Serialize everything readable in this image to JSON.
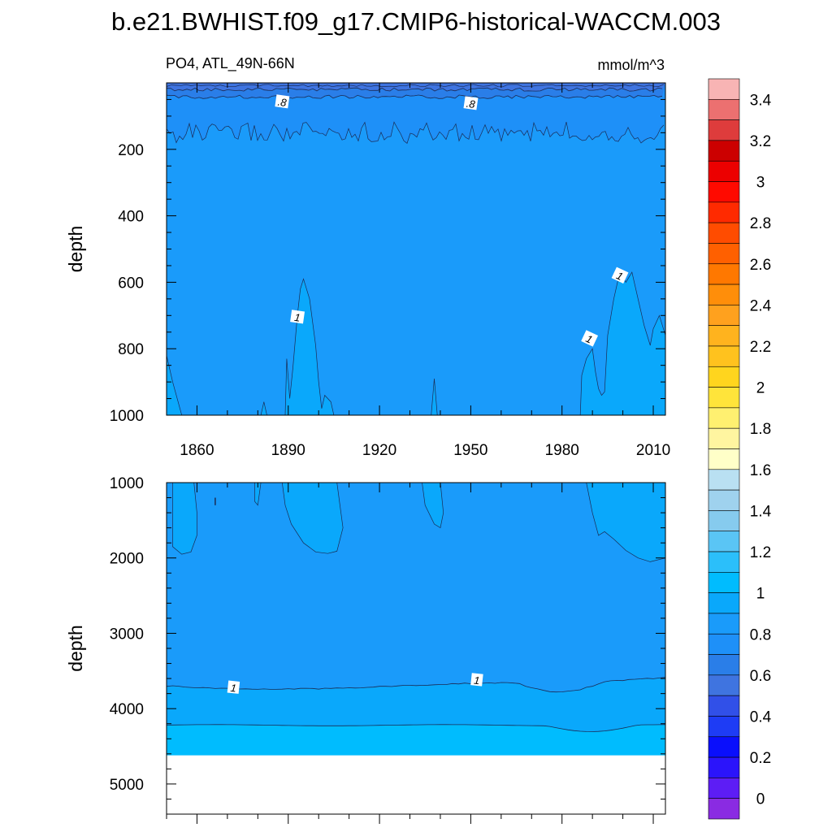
{
  "figure": {
    "title": "b.e21.BWHIST.f09_g17.CMIP6-historical-WACCM.003",
    "left_label": "PO4, ATL_49N-66N",
    "right_label": "mmol/m^3"
  },
  "chart_data": [
    {
      "type": "contour",
      "panel": "upper",
      "xlabel": "",
      "ylabel": "depth",
      "xlim": [
        1850,
        2014
      ],
      "ylim": [
        1000,
        0
      ],
      "xticks": [
        "1860",
        "1890",
        "1920",
        "1950",
        "1980",
        "2010"
      ],
      "yticks": [
        "200",
        "400",
        "600",
        "800",
        "1000"
      ],
      "fill_levels": [
        {
          "range": "0.6-0.7",
          "color": "#3f74e0",
          "approx_depth_top": 0,
          "approx_depth_bottom": 20
        },
        {
          "range": "0.7-0.8",
          "color": "#2a7ee8",
          "approx_depth_top": 20,
          "approx_depth_bottom": 40
        },
        {
          "range": "0.8-0.9",
          "color": "#1e90f8",
          "approx_depth_top": 40,
          "approx_depth_bottom": 130
        },
        {
          "range": "0.9-1.0",
          "color": "#1a9bfa",
          "approx_depth_top": 130,
          "approx_depth_bottom": 1000
        },
        {
          "range": "1.0-1.1",
          "color": "#0aa8fb",
          "note": "patches below ~590 m near 1895 and after ~1985"
        }
      ],
      "contour_labels": [
        {
          "text": ".8",
          "x": 1888,
          "depth": 57
        },
        {
          "text": ".8",
          "x": 1950,
          "depth": 62
        },
        {
          "text": "1",
          "x": 1893,
          "depth": 705
        },
        {
          "text": "1",
          "x": 1989,
          "depth": 770
        },
        {
          "text": "1",
          "x": 1999,
          "depth": 580
        }
      ]
    },
    {
      "type": "contour",
      "panel": "lower",
      "xlabel": "",
      "ylabel": "depth",
      "xlim": [
        1850,
        2014
      ],
      "ylim": [
        5400,
        1000
      ],
      "yticks": [
        "1000",
        "2000",
        "3000",
        "4000",
        "5000"
      ],
      "fill_levels": [
        {
          "range": "0.9-1.0",
          "color": "#1a9bfa",
          "approx_depth_top": 1000,
          "approx_depth_bottom": 3700
        },
        {
          "range": "1.0-1.1",
          "color": "#0aa8fb",
          "approx_depth_top": 3700,
          "approx_depth_bottom": 4230
        },
        {
          "range": "1.1-1.2",
          "color": "#00bcfe",
          "approx_depth_top": 4230,
          "approx_depth_bottom": 4620
        }
      ],
      "missing_below_depth": 4620,
      "contour_labels": [
        {
          "text": "1",
          "x": 1872,
          "depth": 3720
        },
        {
          "text": "1",
          "x": 1952,
          "depth": 3620
        }
      ]
    }
  ],
  "colorbar": {
    "labels": [
      "0",
      "0.2",
      "0.4",
      "0.6",
      "0.8",
      "1",
      "1.2",
      "1.4",
      "1.6",
      "1.8",
      "2",
      "2.2",
      "2.4",
      "2.6",
      "2.8",
      "3",
      "3.2",
      "3.4"
    ],
    "colors": [
      "#8a2be2",
      "#5d1df5",
      "#2b14fb",
      "#0a0ffc",
      "#1e3cf5",
      "#3150e8",
      "#3f74e0",
      "#2a7ee8",
      "#1e90f8",
      "#1a9bfa",
      "#0aa8fb",
      "#00bcfe",
      "#2bbffa",
      "#5ac5f5",
      "#86cbee",
      "#9fd2ee",
      "#b9e0f2",
      "#ffffc8",
      "#fff5a0",
      "#fff070",
      "#ffe43a",
      "#ffd51e",
      "#ffc21e",
      "#ffb31e",
      "#ffa11e",
      "#ff8e0a",
      "#ff7800",
      "#ff6000",
      "#ff4c00",
      "#ff2a00",
      "#ff0a00",
      "#ec0000",
      "#cc0000",
      "#de3c3c",
      "#ec7070",
      "#f8b4b4"
    ]
  }
}
